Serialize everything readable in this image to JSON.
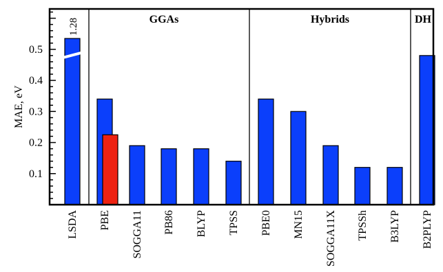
{
  "chart_data": {
    "type": "bar",
    "title": "",
    "xlabel": "",
    "ylabel": "MAE, eV",
    "ylim": [
      0,
      0.63
    ],
    "yticks": [
      "0.1",
      "0.2",
      "0.3",
      "0.4",
      "0.5"
    ],
    "ytick_values": [
      0.1,
      0.2,
      0.3,
      0.4,
      0.5
    ],
    "axis_break": true,
    "grid": false,
    "categories": [
      "LSDA",
      "PBE",
      "SOGGA11",
      "PB86",
      "BLYP",
      "TPSS",
      "PBE0",
      "MN15",
      "SOGGA11X",
      "TPSSh",
      "B3LYP",
      "B2PLYP"
    ],
    "values": [
      1.28,
      0.34,
      0.19,
      0.18,
      0.18,
      0.14,
      0.34,
      0.3,
      0.19,
      0.12,
      0.12,
      0.48
    ],
    "extra_bars": [
      {
        "category": "PBE",
        "value": 0.225,
        "color": "#ee2211"
      }
    ],
    "annotations": [
      {
        "category": "LSDA",
        "text": "1.28"
      }
    ],
    "groups": [
      {
        "label": "",
        "categories": [
          "LSDA"
        ]
      },
      {
        "label": "GGAs",
        "categories": [
          "PBE",
          "SOGGA11",
          "PB86",
          "BLYP",
          "TPSS"
        ]
      },
      {
        "label": "Hybrids",
        "categories": [
          "PBE0",
          "MN15",
          "SOGGA11X",
          "TPSSh",
          "B3LYP"
        ]
      },
      {
        "label": "DH",
        "categories": [
          "B2PLYP"
        ]
      }
    ],
    "colors": {
      "bar": "#0b3ffb",
      "highlight": "#ee2211",
      "outline": "#000000"
    }
  }
}
